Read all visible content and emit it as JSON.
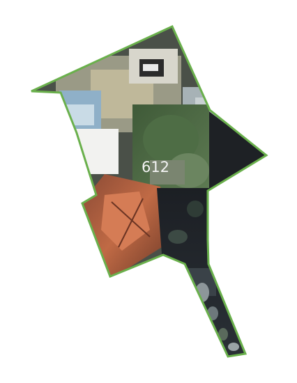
{
  "parcel": {
    "id_label": "612",
    "outline_color": "#6ab04c",
    "label_color": "#f4f4f4"
  }
}
